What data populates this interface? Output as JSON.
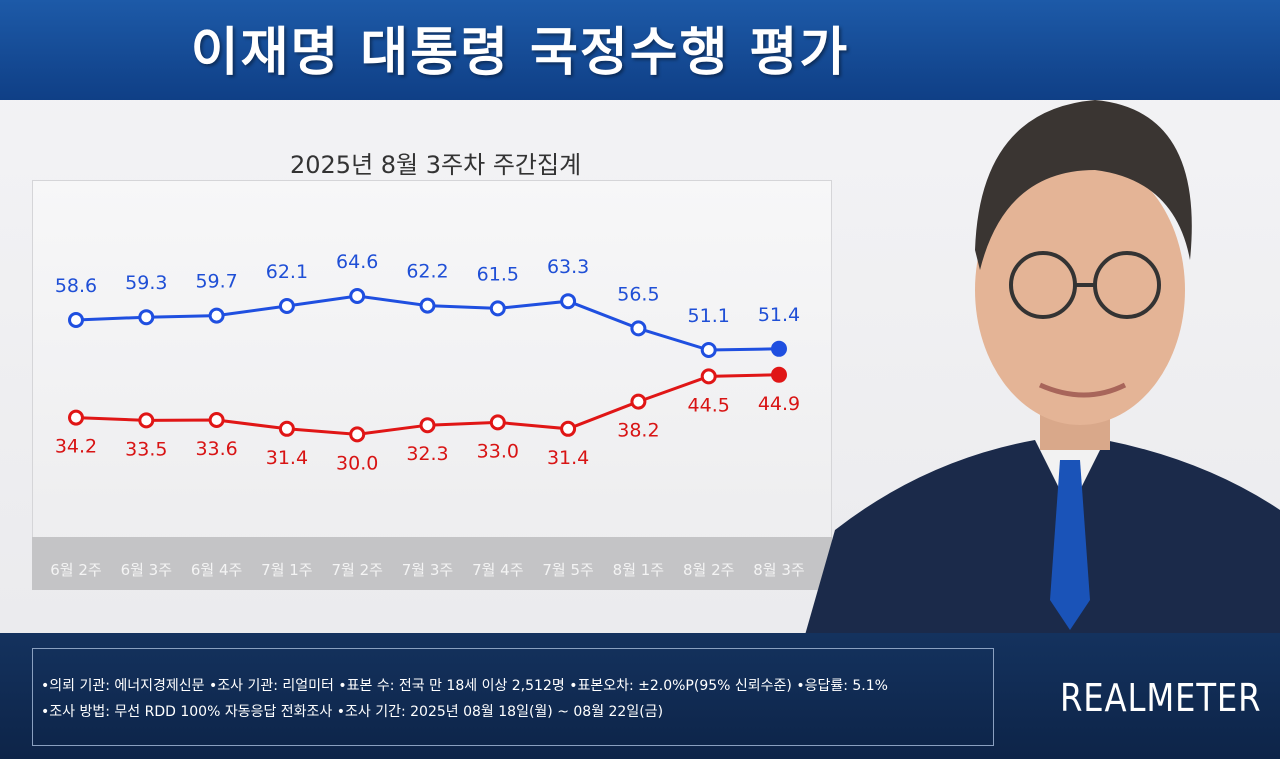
{
  "header": {
    "title": "이재명 대통령 국정수행 평가"
  },
  "chart_data": {
    "type": "line",
    "title": "2025년 8월 3주차 주간집계",
    "categories": [
      "6월 2주",
      "6월 3주",
      "6월 4주",
      "7월 1주",
      "7월 2주",
      "7월 3주",
      "7월 4주",
      "7월 5주",
      "8월 1주",
      "8월 2주",
      "8월 3주"
    ],
    "series": [
      {
        "values": [
          58.6,
          59.3,
          59.7,
          62.1,
          64.6,
          62.2,
          61.5,
          63.3,
          56.5,
          51.1,
          51.4
        ],
        "color": "#1f4fe0"
      },
      {
        "values": [
          34.2,
          33.5,
          33.6,
          31.4,
          30.0,
          32.3,
          33.0,
          31.4,
          38.2,
          44.5,
          44.9
        ],
        "color": "#e01616"
      }
    ],
    "grid": false
  },
  "footer": {
    "line1": "•의뢰 기관: 에너지경제신문  •조사 기관: 리얼미터  •표본 수: 전국 만 18세 이상 2,512명  •표본오차: ±2.0%P(95% 신뢰수준)  •응답률: 5.1%",
    "line2": "•조사 방법: 무선 RDD 100% 자동응답 전화조사  •조사 기간: 2025년 08월 18일(월) ~ 08월 22일(금)",
    "logo": "REALMETER"
  }
}
